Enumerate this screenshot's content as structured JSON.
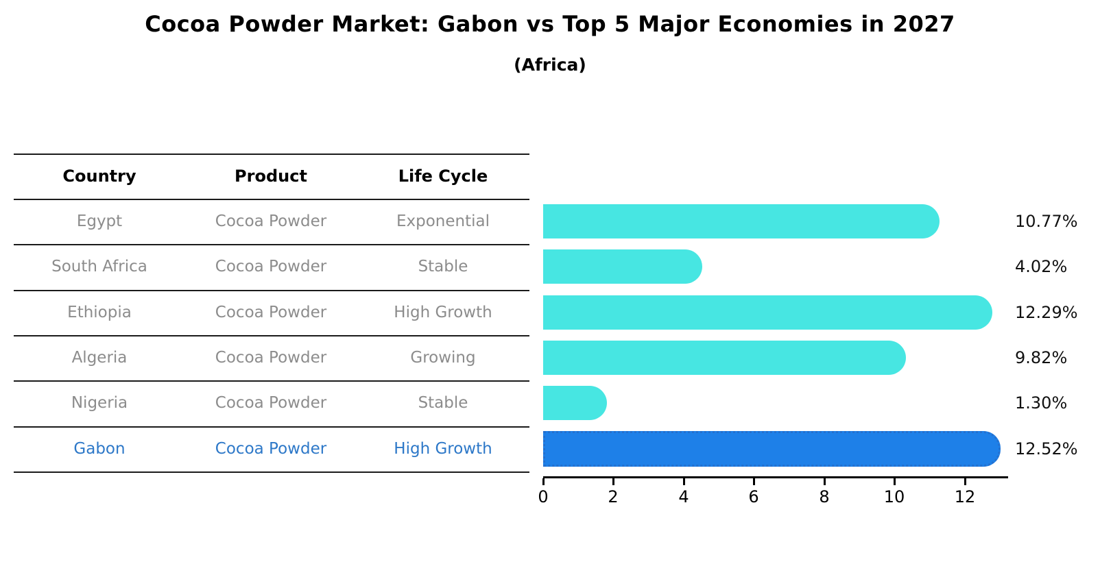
{
  "title": "Cocoa Powder Market: Gabon vs Top 5 Major Economies in 2027",
  "subtitle": "(Africa)",
  "table": {
    "headers": [
      "Country",
      "Product",
      "Life Cycle"
    ],
    "rows": [
      {
        "country": "Egypt",
        "product": "Cocoa Powder",
        "life_cycle": "Exponential"
      },
      {
        "country": "South Africa",
        "product": "Cocoa Powder",
        "life_cycle": "Stable"
      },
      {
        "country": "Ethiopia",
        "product": "Cocoa Powder",
        "life_cycle": "High Growth"
      },
      {
        "country": "Algeria",
        "product": "Cocoa Powder",
        "life_cycle": "Growing"
      },
      {
        "country": "Nigeria",
        "product": "Cocoa Powder",
        "life_cycle": "Stable"
      },
      {
        "country": "Gabon",
        "product": "Cocoa Powder",
        "life_cycle": "High Growth"
      }
    ],
    "highlighted_row": "Gabon"
  },
  "chart_data": {
    "type": "bar",
    "orientation": "horizontal",
    "title": "Cocoa Powder Market: Gabon vs Top 5 Major Economies in 2027",
    "subtitle": "(Africa)",
    "categories": [
      "Egypt",
      "South Africa",
      "Ethiopia",
      "Algeria",
      "Nigeria",
      "Gabon"
    ],
    "values": [
      10.77,
      4.02,
      12.29,
      9.82,
      1.3,
      12.52
    ],
    "value_labels": [
      "10.77%",
      "4.02%",
      "12.29%",
      "9.82%",
      "1.30%",
      "12.52%"
    ],
    "xticks": [
      "0",
      "2",
      "4",
      "6",
      "8",
      "10",
      "12"
    ],
    "xlim": [
      0,
      13.2
    ],
    "grid": false,
    "legend": false,
    "highlight_index": 5,
    "colors": {
      "bar": "#47e6e2",
      "highlight_bar": "#1e80e8",
      "highlight_border": "#2470ce",
      "highlight_text": "#2d78c8",
      "table_text": "#8c8c8c",
      "axis": "#000000"
    }
  }
}
